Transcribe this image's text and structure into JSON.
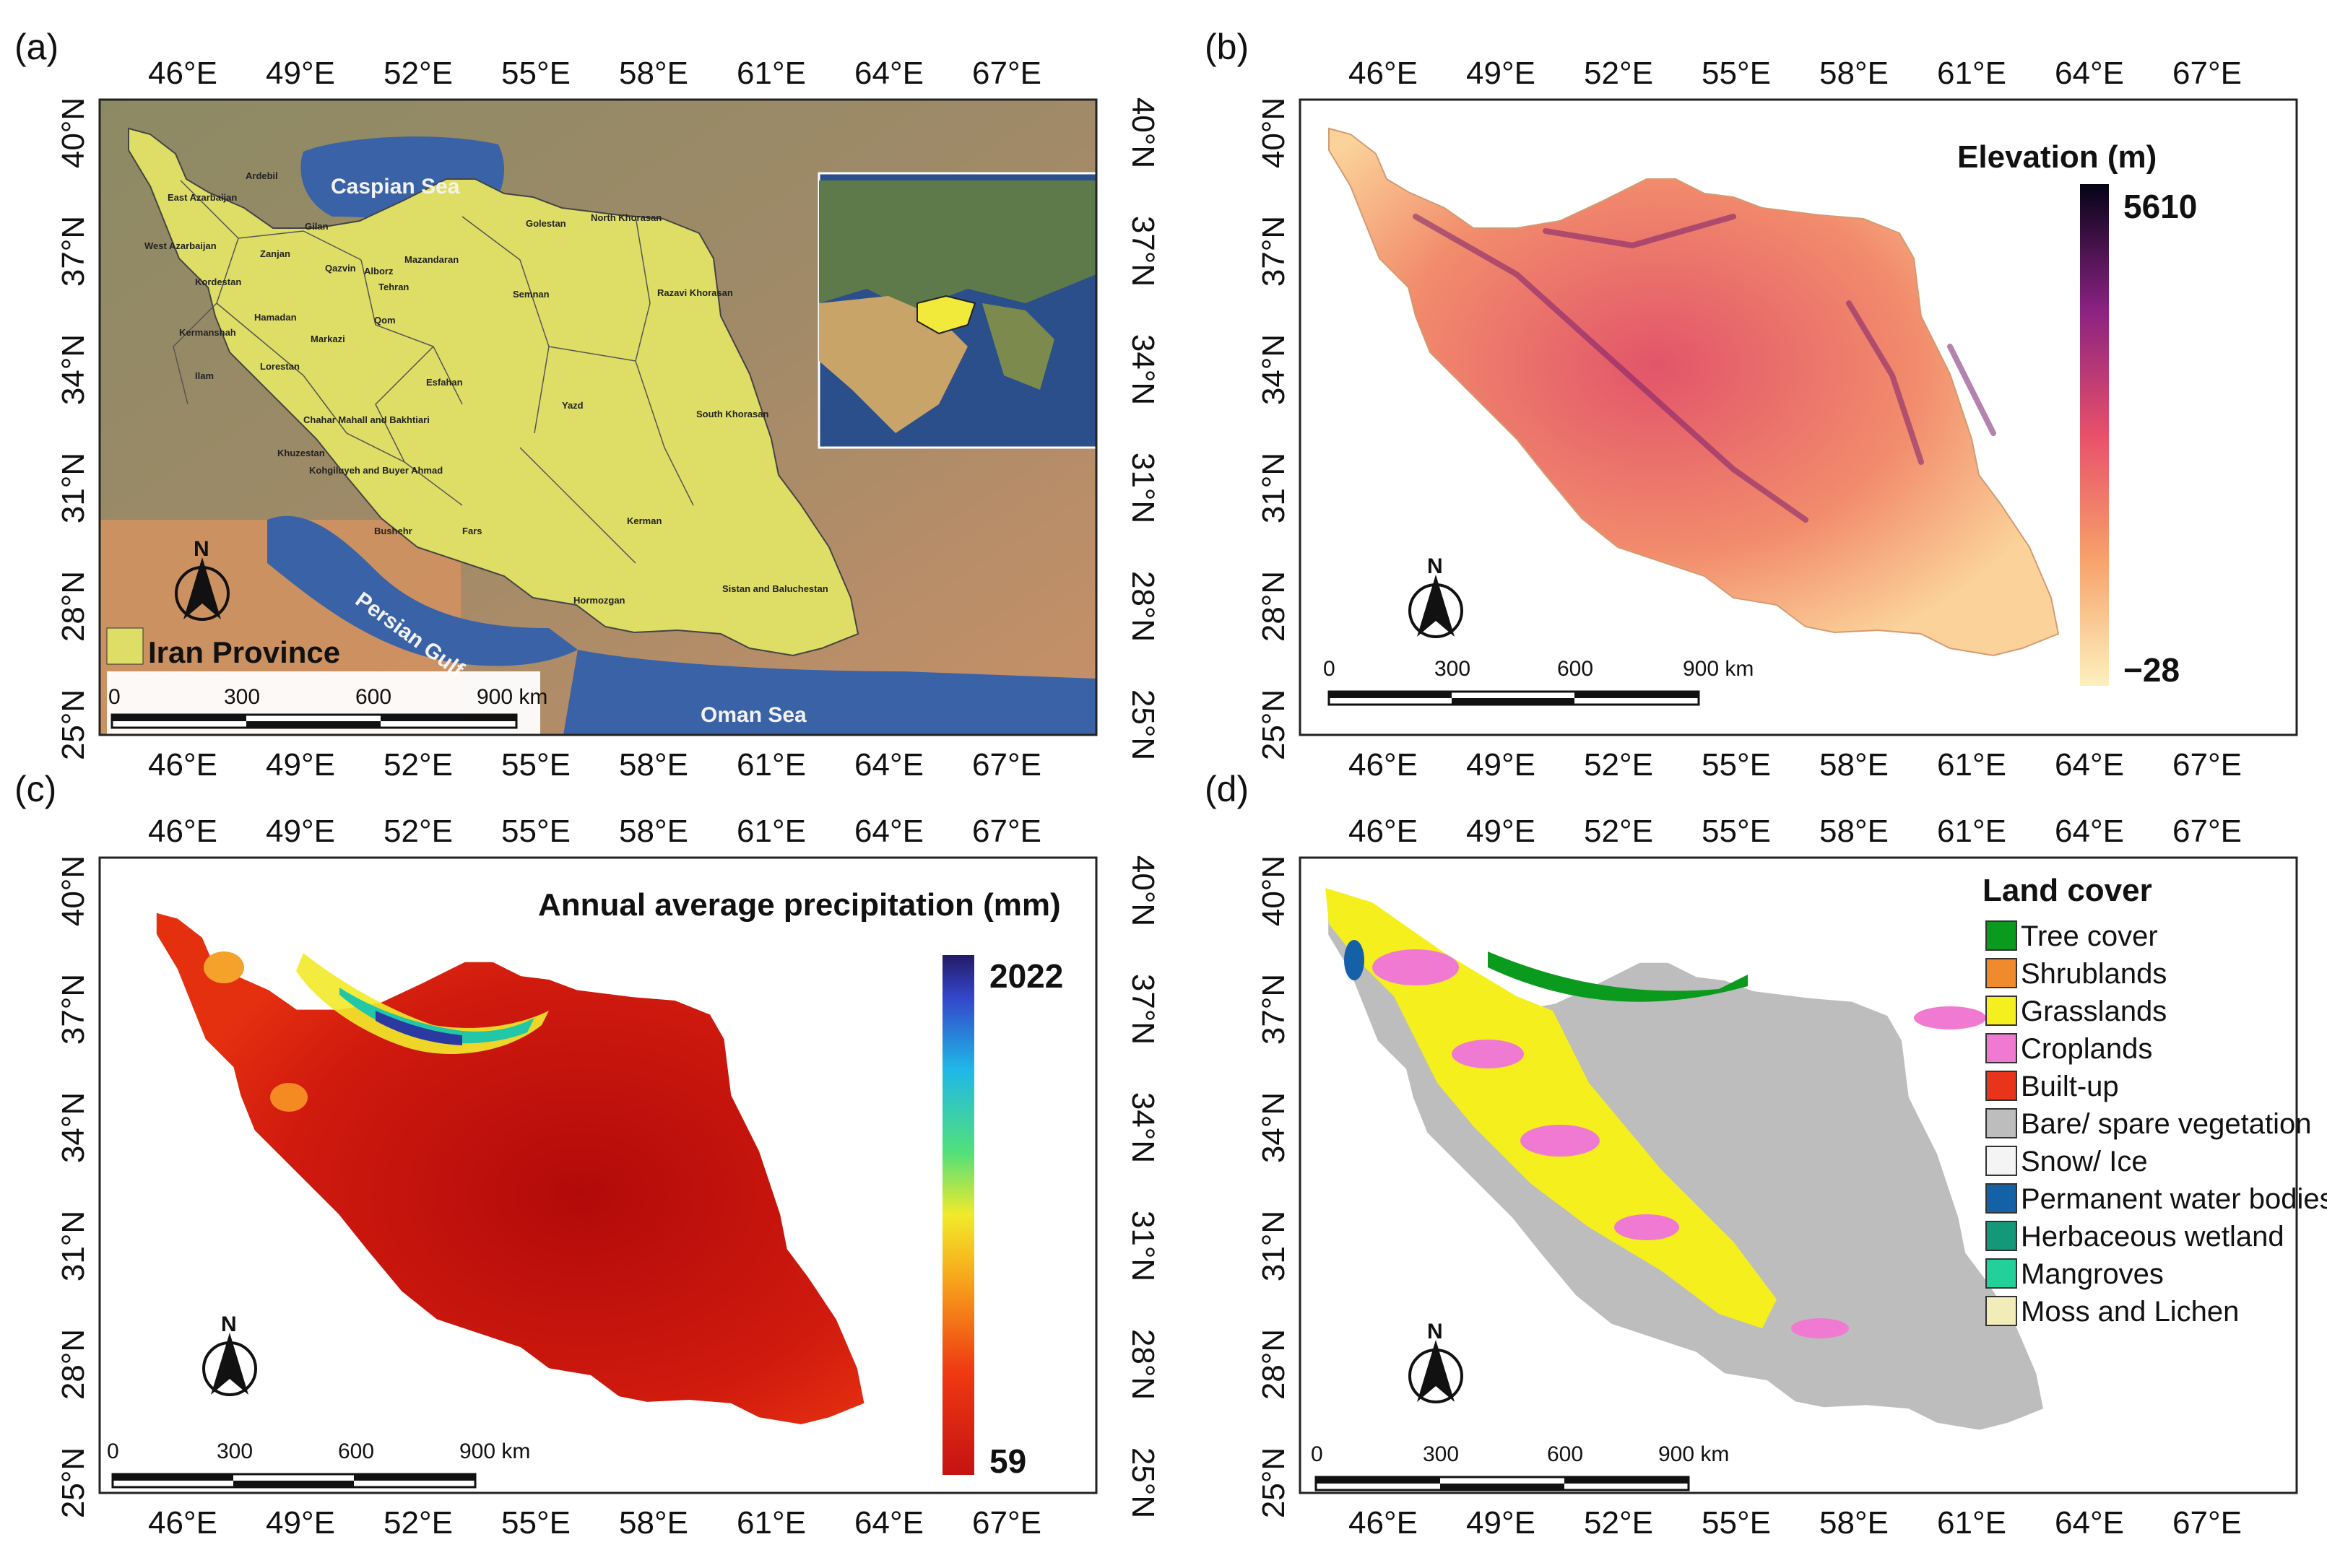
{
  "panels": [
    {
      "id": "a",
      "label": "(a)"
    },
    {
      "id": "b",
      "label": "(b)"
    },
    {
      "id": "c",
      "label": "(c)"
    },
    {
      "id": "d",
      "label": "(d)"
    }
  ],
  "lon_ticks": [
    "46°E",
    "49°E",
    "52°E",
    "55°E",
    "58°E",
    "61°E",
    "64°E",
    "67°E"
  ],
  "lat_ticks": [
    "40°N",
    "37°N",
    "34°N",
    "31°N",
    "28°N",
    "25°N"
  ],
  "north_label": "N",
  "scale_bar": [
    "0",
    "300",
    "600",
    "900 km"
  ],
  "panel_a": {
    "legend_label": "Iran Province",
    "seas": [
      "Caspian Sea",
      "Persian Gulf",
      "Oman Sea"
    ],
    "provinces": [
      "Ardebil",
      "East Azarbaijan",
      "Gilan",
      "West Azarbaijan",
      "Golestan",
      "North Khorasan",
      "Zanjan",
      "Qazvin",
      "Mazandaran",
      "Alborz",
      "Tehran",
      "Kordestan",
      "Semnan",
      "Razavi Khorasan",
      "Hamadan",
      "Qom",
      "Kermanshah",
      "Markazi",
      "Lorestan",
      "Ilam",
      "Esfahan",
      "South Khorasan",
      "Chahar Mahall and Bakhtiari",
      "Yazd",
      "Khuzestan",
      "Kohgiluyeh and Buyer Ahmad",
      "Bushehr",
      "Fars",
      "Kerman",
      "Hormozgan",
      "Sistan and Baluchestan"
    ]
  },
  "panel_b": {
    "title": "Elevation (m)",
    "max": "5610",
    "min": "−28"
  },
  "panel_c": {
    "title": "Annual average precipitation (mm)",
    "max": "2022",
    "min": "59"
  },
  "panel_d": {
    "title": "Land cover",
    "classes": [
      {
        "label": "Tree cover",
        "color": "#0a9a1e"
      },
      {
        "label": "Shrublands",
        "color": "#f08a2c"
      },
      {
        "label": "Grasslands",
        "color": "#f5ef1e"
      },
      {
        "label": "Croplands",
        "color": "#f07ad2"
      },
      {
        "label": "Built-up",
        "color": "#e8341b"
      },
      {
        "label": "Bare/ spare vegetation",
        "color": "#bdbdbd"
      },
      {
        "label": "Snow/ Ice",
        "color": "#f4f4f4"
      },
      {
        "label": "Permanent water bodies",
        "color": "#1561a8"
      },
      {
        "label": "Herbaceous wetland",
        "color": "#14987a"
      },
      {
        "label": "Mangroves",
        "color": "#22d09a"
      },
      {
        "label": "Moss and Lichen",
        "color": "#f1ecb8"
      }
    ]
  },
  "colors": {
    "province_fill": "#dede66",
    "sea": "#3a62a6",
    "land_cover_bare": "#bdbdbd"
  }
}
